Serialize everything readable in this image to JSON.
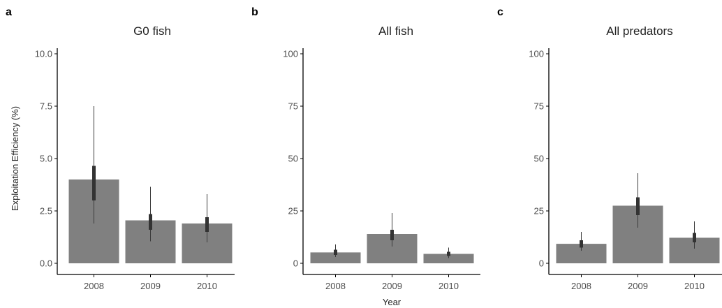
{
  "ylabel": "Exploitation Efficiency (%)",
  "xlabel": "Year",
  "colors": {
    "bar": "#808080",
    "axis": "#000000",
    "ci_thin": "#3a3a3a",
    "ci_thick": "#333333"
  },
  "chart_data": [
    {
      "type": "bar",
      "panel": "a",
      "title": "G0 fish",
      "categories": [
        "2008",
        "2009",
        "2010"
      ],
      "values": [
        4.0,
        2.05,
        1.9
      ],
      "ci_outer": [
        [
          1.9,
          7.5
        ],
        [
          1.05,
          3.65
        ],
        [
          1.0,
          3.3
        ]
      ],
      "ci_inner": [
        [
          3.0,
          4.65
        ],
        [
          1.6,
          2.35
        ],
        [
          1.5,
          2.2
        ]
      ],
      "ylim": [
        0,
        10
      ],
      "yticks": [
        "0.0",
        "2.5",
        "5.0",
        "7.5",
        "10.0"
      ],
      "ytick_values": [
        0,
        2.5,
        5.0,
        7.5,
        10.0
      ]
    },
    {
      "type": "bar",
      "panel": "b",
      "title": "All fish",
      "categories": [
        "2008",
        "2009",
        "2010"
      ],
      "values": [
        5.2,
        14.0,
        4.5
      ],
      "ci_outer": [
        [
          3.0,
          9.0
        ],
        [
          8.0,
          24.0
        ],
        [
          2.5,
          7.5
        ]
      ],
      "ci_inner": [
        [
          4.0,
          6.5
        ],
        [
          11.0,
          16.0
        ],
        [
          3.5,
          5.5
        ]
      ],
      "ylim": [
        0,
        100
      ],
      "yticks": [
        "0",
        "25",
        "50",
        "75",
        "100"
      ],
      "ytick_values": [
        0,
        25,
        50,
        75,
        100
      ]
    },
    {
      "type": "bar",
      "panel": "c",
      "title": "All predators",
      "categories": [
        "2008",
        "2009",
        "2010"
      ],
      "values": [
        9.3,
        27.5,
        12.2
      ],
      "ci_outer": [
        [
          6.0,
          15.0
        ],
        [
          17.0,
          43.0
        ],
        [
          7.0,
          20.0
        ]
      ],
      "ci_inner": [
        [
          7.5,
          11.0
        ],
        [
          23.0,
          31.5
        ],
        [
          10.0,
          14.5
        ]
      ],
      "ylim": [
        0,
        100
      ],
      "yticks": [
        "0",
        "25",
        "50",
        "75",
        "100"
      ],
      "ytick_values": [
        0,
        25,
        50,
        75,
        100
      ]
    }
  ]
}
